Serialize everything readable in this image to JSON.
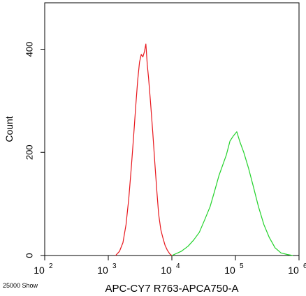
{
  "chart_data": {
    "type": "line",
    "xlabel": "APC-CY7 R763-APCA750-A",
    "ylabel": "Count",
    "footer_note": "25000 Show",
    "x_scale": "log",
    "xlim": [
      100,
      1000000
    ],
    "ylim": [
      0,
      490
    ],
    "x_ticks": [
      {
        "value": 100,
        "base": "10",
        "exp": "2"
      },
      {
        "value": 1000,
        "base": "10",
        "exp": "3"
      },
      {
        "value": 10000,
        "base": "10",
        "exp": "4"
      },
      {
        "value": 100000,
        "base": "10",
        "exp": "5"
      },
      {
        "value": 1000000,
        "base": "10",
        "exp": "6"
      }
    ],
    "y_ticks": [
      0,
      200,
      400
    ],
    "grid": false,
    "series": [
      {
        "color": "#e8161c",
        "x": [
          1300,
          1500,
          1700,
          1900,
          2100,
          2300,
          2500,
          2700,
          2900,
          3100,
          3300,
          3500,
          3700,
          3900,
          4100,
          4300,
          4600,
          5000,
          5400,
          5800,
          6200,
          6700,
          7200,
          7800,
          8500,
          9300,
          10000
        ],
        "y": [
          0,
          8,
          25,
          60,
          110,
          170,
          230,
          290,
          340,
          375,
          390,
          385,
          395,
          410,
          370,
          345,
          300,
          240,
          180,
          125,
          80,
          50,
          35,
          20,
          10,
          3,
          0
        ]
      },
      {
        "color": "#22d22a",
        "x": [
          10000,
          14000,
          18000,
          22000,
          27000,
          33000,
          40000,
          47000,
          55000,
          63000,
          72000,
          82000,
          93000,
          105000,
          118000,
          135000,
          160000,
          190000,
          230000,
          280000,
          340000,
          420000,
          520000,
          650000,
          800000
        ],
        "y": [
          0,
          8,
          18,
          30,
          45,
          70,
          95,
          125,
          155,
          175,
          195,
          222,
          232,
          240,
          220,
          200,
          170,
          135,
          95,
          60,
          35,
          15,
          5,
          2,
          0
        ]
      }
    ]
  }
}
